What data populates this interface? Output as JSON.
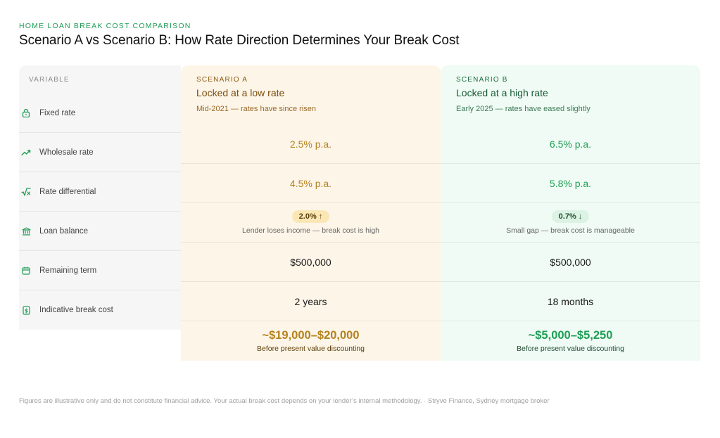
{
  "header": {
    "eyebrow": "HOME LOAN BREAK COST COMPARISON",
    "title": "Scenario A vs Scenario B: How Rate Direction Determines Your Break Cost"
  },
  "variables": {
    "heading": "VARIABLE",
    "items": [
      {
        "label": "Fixed rate",
        "icon": "lock-icon"
      },
      {
        "label": "Wholesale rate",
        "icon": "trending-up-icon"
      },
      {
        "label": "Rate differential",
        "icon": "square-root-icon"
      },
      {
        "label": "Loan balance",
        "icon": "bank-icon"
      },
      {
        "label": "Remaining term",
        "icon": "calendar-icon"
      },
      {
        "label": "Indicative break cost",
        "icon": "dollar-icon"
      }
    ]
  },
  "scenario_a": {
    "tag": "SCENARIO A",
    "title": "Locked at a low rate",
    "subtitle": "Mid-2021 — rates have since risen",
    "fixed_rate": "2.5% p.a.",
    "wholesale_rate": "4.5% p.a.",
    "differential": "2.0% ↑",
    "differential_note": "Lender loses income — break cost is high",
    "loan_balance": "$500,000",
    "remaining_term": "2 years",
    "break_cost": "~$19,000–$20,000",
    "break_cost_note": "Before present value discounting"
  },
  "scenario_b": {
    "tag": "SCENARIO B",
    "title": "Locked at a high rate",
    "subtitle": "Early 2025 — rates have eased slightly",
    "fixed_rate": "6.5% p.a.",
    "wholesale_rate": "5.8% p.a.",
    "differential": "0.7% ↓",
    "differential_note": "Small gap — break cost is manageable",
    "loan_balance": "$500,000",
    "remaining_term": "18 months",
    "break_cost": "~$5,000–$5,250",
    "break_cost_note": "Before present value discounting"
  },
  "colors": {
    "accent_green": "#1f9d55",
    "accent_gold": "#b4821f",
    "scenario_a_bg": "#fdf5e8",
    "scenario_b_bg": "#effbf4"
  },
  "footnote": "Figures are illustrative only and do not constitute financial advice. Your actual break cost depends on your lender’s internal methodology. · Stryve Finance, Sydney mortgage broker"
}
